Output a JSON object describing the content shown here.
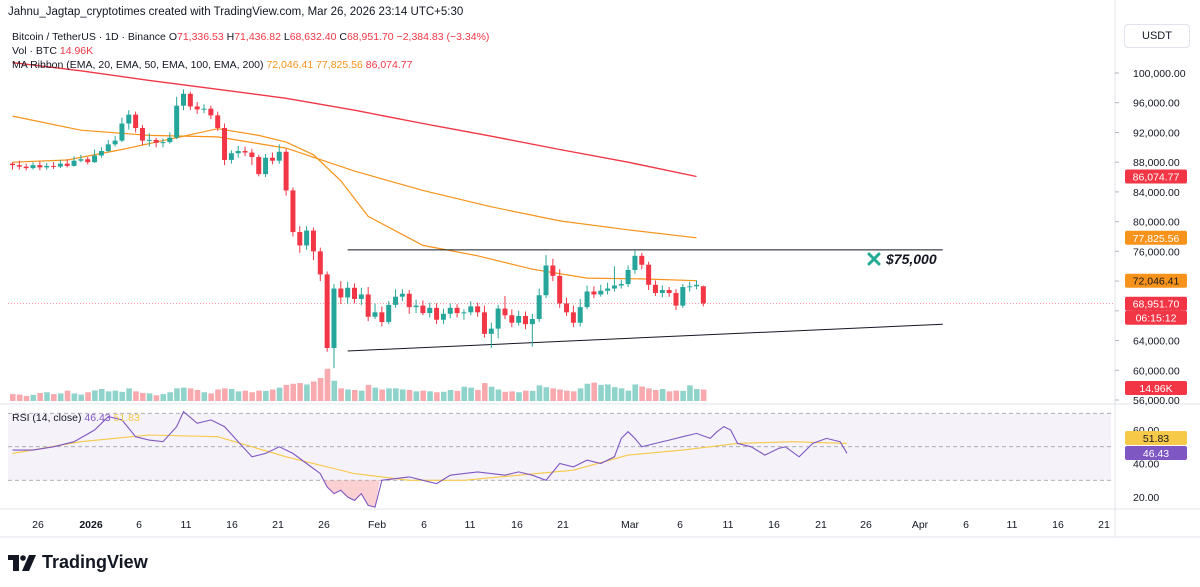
{
  "header": {
    "credit": "Jahnu_Jagtap_cryptotimes created with TradingView.com, Mar 26, 2026 23:14 UTC+5:30",
    "currency_button": "USDT"
  },
  "legend": {
    "symbol": "Bitcoin / TetherUS · 1D · Binance",
    "o_label": "O",
    "o": "71,336.53",
    "h_label": "H",
    "h": "71,436.82",
    "l_label": "L",
    "l": "68,632.40",
    "c_label": "C",
    "c": "68,951.70",
    "change": "−2,384.83 (−3.34%)",
    "vol_label": "Vol · BTC",
    "vol": "14.96K",
    "ma_label": "MA Ribbon (EMA, 20, EMA, 50, EMA, 100, EMA, 200)",
    "ma20": "72,046.41",
    "ma50": "77,825.56",
    "ma100": "86,074.77"
  },
  "annotation": {
    "icon": "x-mark-icon",
    "text": "$75,000"
  },
  "rsi": {
    "label": "RSI (14, close)",
    "value": "46.43",
    "ma": "51.83"
  },
  "price_tags": {
    "ma100": "86,074.77",
    "ma50": "77,825.56",
    "ma20": "72,046.41",
    "last": "68,951.70",
    "countdown": "06:15:12",
    "volume": "14.96K",
    "rsi_ma": "51.83",
    "rsi": "46.43"
  },
  "colors": {
    "up": "#26A69A",
    "down": "#F23645",
    "ema20": "#F7931A",
    "ema50": "#F7931A",
    "ema100": "#F23645",
    "rsi": "#7E57C2",
    "rsi_ma": "#F7C948",
    "vol_up": "#8FD3CB",
    "vol_down": "#F7A9AE"
  },
  "branding": {
    "logo_text": "TradingView"
  },
  "chart_data": {
    "type": "candlestick",
    "price_axis": {
      "ticks": [
        "100,000.00",
        "96,000.00",
        "92,000.00",
        "88,000.00",
        "84,000.00",
        "80,000.00",
        "76,000.00",
        "72,000.00",
        "68,000.00",
        "64,000.00",
        "60,000.00",
        "56,000.00"
      ],
      "range": [
        55000,
        103000
      ]
    },
    "time_axis": {
      "ticks": [
        "26",
        "2026",
        "6",
        "11",
        "16",
        "21",
        "26",
        "Feb",
        "6",
        "11",
        "16",
        "21",
        "Mar",
        "6",
        "11",
        "16",
        "21",
        "26",
        "Apr",
        "6",
        "11",
        "16",
        "21"
      ]
    },
    "rsi_axis": {
      "ticks": [
        "60.00",
        "40.00",
        "20.00"
      ],
      "range": [
        10,
        80
      ],
      "bands": [
        30,
        50,
        70
      ]
    },
    "candles": [
      [
        87800,
        87600,
        88000,
        87000
      ],
      [
        87600,
        87400,
        88200,
        87000
      ],
      [
        87400,
        87200,
        87800,
        86900
      ],
      [
        87200,
        87600,
        88000,
        87000
      ],
      [
        87600,
        87300,
        88100,
        86900
      ],
      [
        87300,
        87500,
        87900,
        87000
      ],
      [
        87500,
        87400,
        88000,
        87100
      ],
      [
        87400,
        87800,
        88300,
        87200
      ],
      [
        87800,
        87500,
        88400,
        87300
      ],
      [
        87500,
        88200,
        88800,
        87400
      ],
      [
        88200,
        88400,
        89000,
        88000
      ],
      [
        88400,
        88000,
        88700,
        87700
      ],
      [
        88000,
        88900,
        89700,
        87900
      ],
      [
        88900,
        89500,
        90000,
        88600
      ],
      [
        89500,
        90400,
        91000,
        89300
      ],
      [
        90400,
        90900,
        91500,
        90100
      ],
      [
        90900,
        93200,
        94000,
        90700
      ],
      [
        93200,
        94400,
        95000,
        92400
      ],
      [
        94400,
        92600,
        94800,
        92000
      ],
      [
        92600,
        90900,
        93000,
        90300
      ],
      [
        90900,
        91000,
        91900,
        90100
      ],
      [
        91000,
        90600,
        91300,
        90000
      ],
      [
        90600,
        90700,
        91200,
        90000
      ],
      [
        90700,
        91300,
        92000,
        90500
      ],
      [
        91300,
        95600,
        96800,
        91100
      ],
      [
        95600,
        97200,
        97800,
        95000
      ],
      [
        97200,
        95500,
        97500,
        95000
      ],
      [
        95500,
        95100,
        96100,
        94500
      ],
      [
        95100,
        95200,
        95800,
        94600
      ],
      [
        95200,
        94300,
        95600,
        93800
      ],
      [
        94300,
        92600,
        94800,
        92200
      ],
      [
        92600,
        88300,
        93200,
        87600
      ],
      [
        88300,
        89200,
        89600,
        87800
      ],
      [
        89200,
        89500,
        90200,
        88600
      ],
      [
        89500,
        89300,
        90100,
        88800
      ],
      [
        89300,
        88700,
        89800,
        87600
      ],
      [
        88700,
        86400,
        89000,
        86100
      ],
      [
        86400,
        88600,
        89100,
        86000
      ],
      [
        88600,
        88200,
        89300,
        87700
      ],
      [
        88200,
        89400,
        90400,
        87800
      ],
      [
        89400,
        84200,
        89800,
        83500
      ],
      [
        84200,
        78600,
        84600,
        78000
      ],
      [
        78600,
        76800,
        79400,
        75800
      ],
      [
        76800,
        78800,
        79400,
        76200
      ],
      [
        78800,
        76000,
        79200,
        74800
      ],
      [
        76000,
        72900,
        76500,
        72000
      ],
      [
        72900,
        63000,
        73300,
        62500
      ],
      [
        63000,
        71000,
        71600,
        60300
      ],
      [
        71000,
        69800,
        72000,
        68900
      ],
      [
        69800,
        71100,
        71900,
        68900
      ],
      [
        71100,
        69600,
        71700,
        69000
      ],
      [
        69600,
        70200,
        71100,
        68800
      ],
      [
        70200,
        67200,
        71200,
        66600
      ],
      [
        67200,
        67800,
        69000,
        66900
      ],
      [
        67800,
        66500,
        68600,
        65900
      ],
      [
        66500,
        68800,
        69300,
        66200
      ],
      [
        68800,
        69900,
        70900,
        68400
      ],
      [
        69900,
        70300,
        70900,
        69300
      ],
      [
        70300,
        68500,
        70800,
        67600
      ],
      [
        68500,
        68700,
        69500,
        67700
      ],
      [
        68700,
        67700,
        69400,
        67400
      ],
      [
        67700,
        68400,
        69100,
        67100
      ],
      [
        68400,
        66800,
        69000,
        66200
      ],
      [
        66800,
        67600,
        68300,
        66200
      ],
      [
        67600,
        68400,
        69000,
        67000
      ],
      [
        68400,
        67700,
        68900,
        67100
      ],
      [
        67700,
        67800,
        68200,
        66800
      ],
      [
        67800,
        68600,
        69300,
        67400
      ],
      [
        68600,
        67800,
        69100,
        67200
      ],
      [
        67800,
        64900,
        68700,
        64400
      ],
      [
        64900,
        65600,
        66400,
        63000
      ],
      [
        65600,
        68300,
        68800,
        64300
      ],
      [
        68300,
        67400,
        70000,
        66900
      ],
      [
        67400,
        66400,
        68200,
        65800
      ],
      [
        66400,
        67300,
        68000,
        66000
      ],
      [
        67300,
        66200,
        67900,
        65500
      ],
      [
        66200,
        66900,
        67600,
        63200
      ],
      [
        66900,
        70100,
        71000,
        66500
      ],
      [
        70100,
        74100,
        75500,
        69700
      ],
      [
        74100,
        72700,
        75000,
        72000
      ],
      [
        72700,
        69000,
        73600,
        68400
      ],
      [
        69000,
        67800,
        69800,
        67300
      ],
      [
        67800,
        66400,
        68700,
        65800
      ],
      [
        66400,
        68500,
        69600,
        65900
      ],
      [
        68500,
        70600,
        71400,
        68200
      ],
      [
        70600,
        70200,
        71300,
        69700
      ],
      [
        70200,
        70700,
        71500,
        69900
      ],
      [
        70700,
        71000,
        71800,
        70200
      ],
      [
        71000,
        71400,
        74000,
        70600
      ],
      [
        71400,
        71600,
        72200,
        71000
      ],
      [
        71600,
        73500,
        74100,
        71200
      ],
      [
        73500,
        75400,
        76100,
        73000
      ],
      [
        75400,
        74200,
        75800,
        73600
      ],
      [
        74200,
        71500,
        74600,
        70800
      ],
      [
        71500,
        70400,
        72100,
        70000
      ],
      [
        70400,
        70800,
        71400,
        69800
      ],
      [
        70800,
        70400,
        71200,
        69900
      ],
      [
        70400,
        68700,
        70900,
        68100
      ],
      [
        68700,
        71200,
        71600,
        68400
      ],
      [
        71200,
        71300,
        71900,
        70600
      ],
      [
        71300,
        71500,
        72100,
        70900
      ],
      [
        71300,
        69000,
        71400,
        68600
      ]
    ],
    "volume_max_relative": 1.0,
    "volumes": [
      0.3,
      0.28,
      0.22,
      0.27,
      0.35,
      0.38,
      0.3,
      0.33,
      0.45,
      0.33,
      0.28,
      0.38,
      0.46,
      0.52,
      0.42,
      0.45,
      0.4,
      0.55,
      0.42,
      0.35,
      0.33,
      0.25,
      0.3,
      0.38,
      0.55,
      0.58,
      0.55,
      0.48,
      0.38,
      0.33,
      0.5,
      0.55,
      0.52,
      0.42,
      0.45,
      0.38,
      0.45,
      0.44,
      0.5,
      0.58,
      0.7,
      0.75,
      0.78,
      0.72,
      0.85,
      1.0,
      1.4,
      0.88,
      0.55,
      0.5,
      0.48,
      0.45,
      0.7,
      0.58,
      0.5,
      0.55,
      0.55,
      0.5,
      0.48,
      0.42,
      0.45,
      0.42,
      0.38,
      0.4,
      0.48,
      0.44,
      0.62,
      0.58,
      0.48,
      0.78,
      0.62,
      0.5,
      0.4,
      0.42,
      0.38,
      0.45,
      0.44,
      0.68,
      0.6,
      0.55,
      0.5,
      0.45,
      0.42,
      0.55,
      0.75,
      0.8,
      0.7,
      0.72,
      0.6,
      0.55,
      0.45,
      0.72,
      0.63,
      0.55,
      0.48,
      0.52,
      0.42,
      0.45,
      0.44,
      0.68,
      0.52,
      0.5
    ],
    "ema20": [
      [
        0,
        88000
      ],
      [
        8,
        88300
      ],
      [
        16,
        89700
      ],
      [
        24,
        91300
      ],
      [
        30,
        92500
      ],
      [
        36,
        91600
      ],
      [
        40,
        90700
      ],
      [
        44,
        89000
      ],
      [
        48,
        85500
      ],
      [
        52,
        80700
      ],
      [
        60,
        76800
      ],
      [
        68,
        75400
      ],
      [
        76,
        73600
      ],
      [
        84,
        72400
      ],
      [
        92,
        72300
      ],
      [
        100,
        72050
      ]
    ],
    "ema50": [
      [
        0,
        94200
      ],
      [
        10,
        92300
      ],
      [
        20,
        91600
      ],
      [
        30,
        91400
      ],
      [
        40,
        89900
      ],
      [
        50,
        86800
      ],
      [
        60,
        84200
      ],
      [
        70,
        82000
      ],
      [
        80,
        80100
      ],
      [
        90,
        78900
      ],
      [
        100,
        77830
      ]
    ],
    "ema100": [
      [
        0,
        101400
      ],
      [
        10,
        100300
      ],
      [
        20,
        99000
      ],
      [
        30,
        97800
      ],
      [
        40,
        96600
      ],
      [
        50,
        95000
      ],
      [
        60,
        93200
      ],
      [
        70,
        91500
      ],
      [
        80,
        89700
      ],
      [
        90,
        88000
      ],
      [
        100,
        86070
      ]
    ],
    "trendline_horizontal": [
      [
        49,
        76200
      ],
      [
        136,
        76200
      ]
    ],
    "trendline_rising": [
      [
        49,
        62600
      ],
      [
        136,
        66200
      ]
    ],
    "rsi": [
      [
        0,
        48
      ],
      [
        3,
        48
      ],
      [
        6,
        50
      ],
      [
        9,
        53
      ],
      [
        12,
        60
      ],
      [
        14,
        68
      ],
      [
        16,
        66
      ],
      [
        18,
        56
      ],
      [
        20,
        54
      ],
      [
        22,
        53
      ],
      [
        24,
        62
      ],
      [
        25,
        71
      ],
      [
        27,
        64
      ],
      [
        29,
        66
      ],
      [
        31,
        62
      ],
      [
        33,
        53
      ],
      [
        35,
        44
      ],
      [
        37,
        46
      ],
      [
        39,
        50
      ],
      [
        41,
        46
      ],
      [
        43,
        40
      ],
      [
        45,
        34
      ],
      [
        46,
        26
      ],
      [
        47,
        22
      ],
      [
        48,
        24
      ],
      [
        49,
        20
      ],
      [
        50,
        18
      ],
      [
        51,
        22
      ],
      [
        52,
        15
      ],
      [
        53,
        14
      ],
      [
        54,
        30
      ],
      [
        56,
        31
      ],
      [
        58,
        32
      ],
      [
        60,
        30
      ],
      [
        62,
        28
      ],
      [
        64,
        33
      ],
      [
        66,
        34
      ],
      [
        68,
        35
      ],
      [
        70,
        34
      ],
      [
        72,
        33
      ],
      [
        74,
        35
      ],
      [
        76,
        33
      ],
      [
        78,
        30
      ],
      [
        80,
        40
      ],
      [
        82,
        38
      ],
      [
        84,
        42
      ],
      [
        86,
        40
      ],
      [
        88,
        44
      ],
      [
        89,
        55
      ],
      [
        90,
        59
      ],
      [
        91,
        55
      ],
      [
        92,
        50
      ],
      [
        94,
        52
      ],
      [
        96,
        54
      ],
      [
        98,
        56
      ],
      [
        100,
        58
      ],
      [
        102,
        55
      ],
      [
        103,
        59
      ],
      [
        104,
        62
      ],
      [
        105,
        60
      ],
      [
        106,
        52
      ],
      [
        108,
        50
      ],
      [
        110,
        45
      ],
      [
        112,
        49
      ],
      [
        113,
        50
      ],
      [
        115,
        44
      ],
      [
        117,
        52
      ],
      [
        119,
        55
      ],
      [
        121,
        53
      ],
      [
        122,
        46
      ]
    ],
    "rsi_ma": [
      [
        0,
        46
      ],
      [
        10,
        53
      ],
      [
        20,
        57
      ],
      [
        30,
        56
      ],
      [
        40,
        44
      ],
      [
        50,
        34
      ],
      [
        58,
        30
      ],
      [
        66,
        30
      ],
      [
        74,
        33
      ],
      [
        82,
        36
      ],
      [
        90,
        45
      ],
      [
        98,
        48
      ],
      [
        106,
        52
      ],
      [
        114,
        53
      ],
      [
        122,
        52
      ]
    ]
  }
}
